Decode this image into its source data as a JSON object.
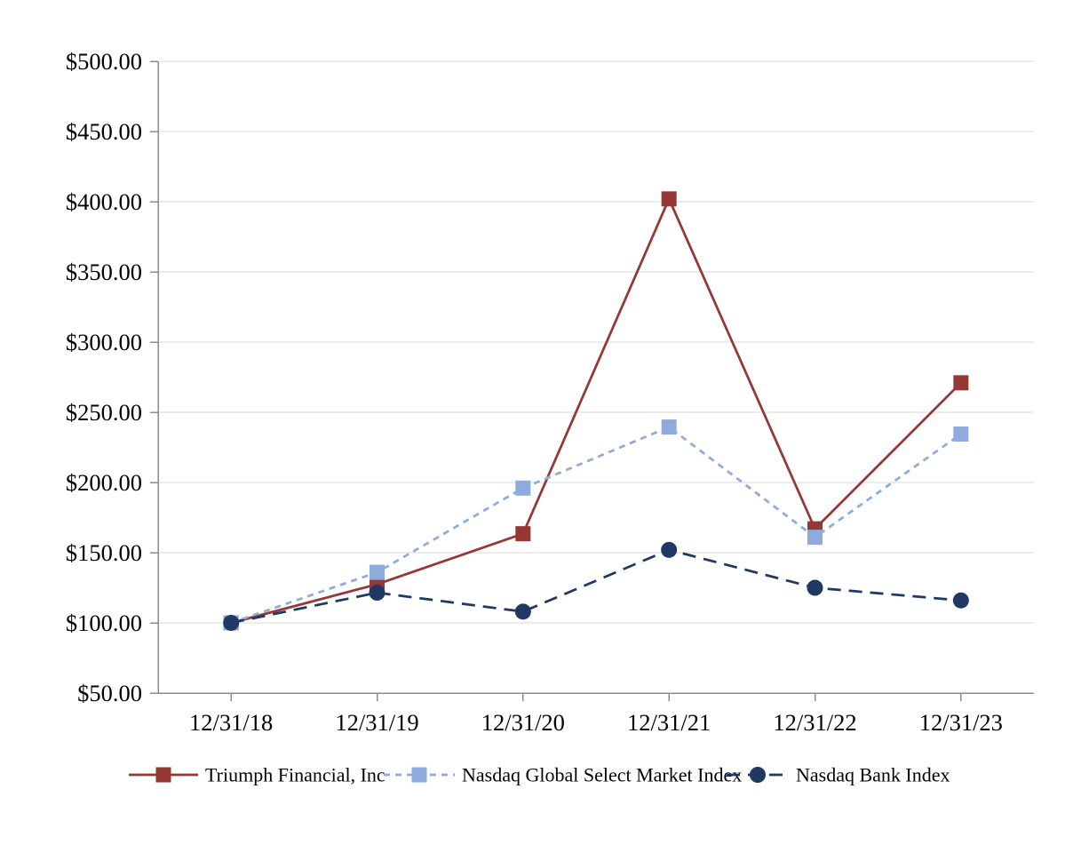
{
  "page": {
    "background": "#FFFFFF"
  },
  "chart_data": {
    "type": "line",
    "categories": [
      "12/31/18",
      "12/31/19",
      "12/31/20",
      "12/31/21",
      "12/31/22",
      "12/31/23"
    ],
    "series": [
      {
        "name": "Triumph Financial, Inc",
        "color": "#953735",
        "line_style": "solid",
        "marker": "square",
        "values": [
          100,
          127.5,
          163.5,
          402,
          167,
          271
        ]
      },
      {
        "name": "Nasdaq Global Select Market Index",
        "color": "#8FAADC",
        "line_style": "short-dash",
        "marker": "square",
        "values": [
          100,
          136,
          196,
          239.5,
          161,
          234.5
        ]
      },
      {
        "name": "Nasdaq Bank Index",
        "color": "#1F3864",
        "line_style": "long-dash",
        "marker": "circle",
        "values": [
          100,
          121.5,
          108,
          152,
          125,
          116
        ]
      }
    ],
    "y_axis": {
      "min": 50,
      "max": 500,
      "tick_step": 50,
      "tick_labels": [
        "$50.00",
        "$100.00",
        "$150.00",
        "$200.00",
        "$250.00",
        "$300.00",
        "$350.00",
        "$400.00",
        "$450.00",
        "$500.00"
      ]
    },
    "x_axis": {
      "tick_labels": [
        "12/31/18",
        "12/31/19",
        "12/31/20",
        "12/31/21",
        "12/31/22",
        "12/31/23"
      ]
    },
    "grid": true,
    "legend_position": "bottom",
    "colors": {
      "gridline": "#D9D9D9",
      "axis": "#8C8C8C",
      "text": "#000000",
      "background": "#FFFFFF"
    }
  }
}
